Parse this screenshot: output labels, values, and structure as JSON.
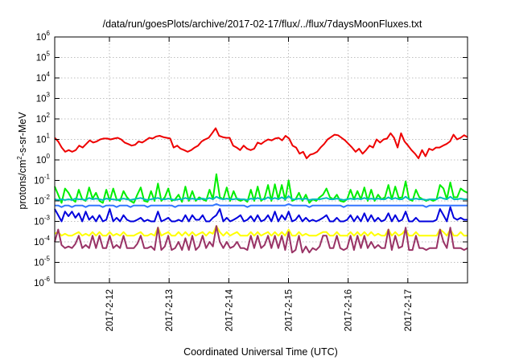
{
  "chart_data": {
    "type": "line",
    "title": "/data/run/goesPlots/archive/2017-02-17/flux/../flux/7daysMoonFluxes.txt",
    "xlabel": "Coordinated Universal Time (UTC)",
    "ylabel": {
      "prefix": "protons/cm",
      "sup": "2",
      "suffix": "-s-sr-MeV"
    },
    "y_scale": "log",
    "ylim": [
      1e-06,
      1000000.0
    ],
    "y_ticks": [
      {
        "base": "10",
        "exp": "-6",
        "value": -6
      },
      {
        "base": "10",
        "exp": "-5",
        "value": -5
      },
      {
        "base": "10",
        "exp": "-4",
        "value": -4
      },
      {
        "base": "10",
        "exp": "-3",
        "value": -3
      },
      {
        "base": "10",
        "exp": "-2",
        "value": -2
      },
      {
        "base": "10",
        "exp": "-1",
        "value": -1
      },
      {
        "base": "10",
        "exp": "0",
        "value": 0
      },
      {
        "base": "10",
        "exp": "1",
        "value": 1
      },
      {
        "base": "10",
        "exp": "2",
        "value": 2
      },
      {
        "base": "10",
        "exp": "3",
        "value": 3
      },
      {
        "base": "10",
        "exp": "4",
        "value": 4
      },
      {
        "base": "10",
        "exp": "5",
        "value": 5
      },
      {
        "base": "10",
        "exp": "6",
        "value": 6
      }
    ],
    "x_range_days": [
      2017.0211,
      2017.0
    ],
    "x_start": "2017-02-11 02:00",
    "x_end": "2017-02-18 00:00",
    "x_ticks": [
      "2017-2-12",
      "2017-2-13",
      "2017-2-14",
      "2017-2-15",
      "2017-2-16",
      "2017-2-17"
    ],
    "grid": true,
    "series": [
      {
        "color": "#ee0000",
        "values": [
          12,
          8,
          4,
          2.5,
          3,
          2.5,
          3,
          5,
          4,
          6,
          9,
          7,
          8,
          10,
          11,
          11,
          10,
          11,
          12,
          10,
          7,
          6,
          5,
          5.5,
          8,
          7,
          9,
          12,
          11,
          14,
          15,
          13,
          12,
          11,
          4,
          5,
          3.5,
          3,
          2.5,
          3,
          4,
          5,
          8,
          10,
          12,
          20,
          35,
          15,
          13,
          12,
          12,
          5,
          4,
          3,
          5,
          3.5,
          3,
          3.5,
          7,
          6,
          8,
          10,
          9,
          11,
          12,
          9,
          15,
          11,
          5,
          4,
          2,
          2.5,
          1.2,
          1.8,
          2,
          2.5,
          4,
          6,
          10,
          13,
          17,
          16,
          12,
          9,
          6,
          4,
          2.5,
          3.5,
          2,
          3,
          5,
          4,
          10,
          7,
          10,
          11,
          20,
          12,
          4,
          20,
          8,
          5,
          3,
          2,
          1.2,
          3,
          1.5,
          3.5,
          3,
          4,
          4,
          5,
          6,
          8,
          17,
          10,
          12,
          16,
          13
        ]
      },
      {
        "color": "#00ee00",
        "values": [
          0.05,
          0.02,
          0.008,
          0.04,
          0.025,
          0.012,
          0.009,
          0.035,
          0.012,
          0.01,
          0.045,
          0.013,
          0.025,
          0.01,
          0.008,
          0.035,
          0.01,
          0.04,
          0.012,
          0.01,
          0.03,
          0.015,
          0.01,
          0.008,
          0.02,
          0.045,
          0.01,
          0.009,
          0.03,
          0.01,
          0.07,
          0.01,
          0.015,
          0.04,
          0.01,
          0.012,
          0.02,
          0.009,
          0.05,
          0.01,
          0.03,
          0.01,
          0.015,
          0.012,
          0.01,
          0.035,
          0.012,
          0.2,
          0.015,
          0.012,
          0.045,
          0.01,
          0.03,
          0.012,
          0.01,
          0.012,
          0.009,
          0.035,
          0.01,
          0.05,
          0.01,
          0.014,
          0.06,
          0.01,
          0.065,
          0.012,
          0.06,
          0.011,
          0.1,
          0.01,
          0.012,
          0.025,
          0.01,
          0.02,
          0.008,
          0.012,
          0.01,
          0.015,
          0.02,
          0.04,
          0.015,
          0.012,
          0.02,
          0.01,
          0.009,
          0.012,
          0.035,
          0.012,
          0.03,
          0.012,
          0.045,
          0.01,
          0.035,
          0.01,
          0.02,
          0.012,
          0.015,
          0.06,
          0.012,
          0.05,
          0.014,
          0.015,
          0.09,
          0.012,
          0.01,
          0.035,
          0.015,
          0.012,
          0.01,
          0.012,
          0.01,
          0.012,
          0.06,
          0.04,
          0.012,
          0.08,
          0.015,
          0.015,
          0.04,
          0.03,
          0.025
        ]
      },
      {
        "color": "#00bbbb",
        "values": [
          0.012,
          0.011,
          0.012,
          0.011,
          0.012,
          0.011,
          0.013,
          0.012,
          0.012,
          0.011,
          0.014,
          0.012,
          0.013,
          0.012,
          0.011,
          0.013,
          0.012,
          0.012,
          0.011,
          0.012,
          0.013,
          0.012,
          0.011,
          0.012,
          0.013,
          0.014,
          0.012,
          0.011,
          0.012,
          0.013,
          0.014,
          0.012,
          0.012,
          0.013,
          0.012,
          0.011,
          0.012,
          0.012,
          0.014,
          0.012,
          0.013,
          0.012,
          0.012,
          0.013,
          0.012,
          0.014,
          0.012,
          0.016,
          0.013,
          0.012,
          0.013,
          0.012,
          0.012,
          0.013,
          0.012,
          0.012,
          0.011,
          0.013,
          0.012,
          0.014,
          0.012,
          0.012,
          0.015,
          0.012,
          0.014,
          0.012,
          0.015,
          0.012,
          0.017,
          0.012,
          0.012,
          0.013,
          0.012,
          0.013,
          0.011,
          0.012,
          0.012,
          0.012,
          0.013,
          0.014,
          0.012,
          0.012,
          0.013,
          0.012,
          0.011,
          0.012,
          0.013,
          0.012,
          0.013,
          0.012,
          0.014,
          0.012,
          0.013,
          0.012,
          0.013,
          0.012,
          0.012,
          0.015,
          0.012,
          0.014,
          0.012,
          0.012,
          0.016,
          0.012,
          0.012,
          0.013,
          0.012,
          0.012,
          0.011,
          0.012,
          0.012,
          0.012,
          0.015,
          0.013,
          0.012,
          0.016,
          0.012,
          0.012,
          0.013,
          0.012,
          0.012
        ]
      },
      {
        "color": "#0000dd",
        "values": [
          0.004,
          0.002,
          0.001,
          0.003,
          0.0018,
          0.003,
          0.0015,
          0.0025,
          0.001,
          0.003,
          0.0012,
          0.0018,
          0.001,
          0.002,
          0.001,
          0.0012,
          0.004,
          0.001,
          0.0015,
          0.001,
          0.002,
          0.0012,
          0.001,
          0.001,
          0.0012,
          0.0015,
          0.001,
          0.0012,
          0.001,
          0.001,
          0.003,
          0.001,
          0.0012,
          0.0015,
          0.001,
          0.001,
          0.0012,
          0.001,
          0.002,
          0.001,
          0.002,
          0.0012,
          0.0012,
          0.002,
          0.001,
          0.001,
          0.0015,
          0.002,
          0.004,
          0.001,
          0.0015,
          0.001,
          0.0012,
          0.0015,
          0.002,
          0.001,
          0.0012,
          0.0018,
          0.001,
          0.002,
          0.001,
          0.0012,
          0.002,
          0.001,
          0.003,
          0.001,
          0.002,
          0.0012,
          0.003,
          0.001,
          0.0012,
          0.002,
          0.001,
          0.0015,
          0.001,
          0.0012,
          0.001,
          0.0012,
          0.0015,
          0.002,
          0.001,
          0.001,
          0.0015,
          0.001,
          0.001,
          0.0012,
          0.002,
          0.001,
          0.0018,
          0.001,
          0.0025,
          0.001,
          0.002,
          0.001,
          0.0015,
          0.001,
          0.0012,
          0.0025,
          0.001,
          0.002,
          0.001,
          0.0012,
          0.003,
          0.001,
          0.001,
          0.0015,
          0.001,
          0.001,
          0.001,
          0.001,
          0.001,
          0.0012,
          0.004,
          0.002,
          0.001,
          0.005,
          0.0015,
          0.0012,
          0.0015,
          0.0012,
          0.0012
        ]
      },
      {
        "color": "#3377ff",
        "values": [
          0.006,
          0.006,
          0.005,
          0.006,
          0.006,
          0.005,
          0.006,
          0.006,
          0.006,
          0.005,
          0.006,
          0.006,
          0.006,
          0.006,
          0.005,
          0.006,
          0.006,
          0.006,
          0.005,
          0.006,
          0.006,
          0.006,
          0.005,
          0.006,
          0.006,
          0.006,
          0.006,
          0.005,
          0.006,
          0.006,
          0.006,
          0.006,
          0.006,
          0.006,
          0.006,
          0.005,
          0.006,
          0.006,
          0.006,
          0.006,
          0.006,
          0.006,
          0.006,
          0.006,
          0.006,
          0.006,
          0.006,
          0.007,
          0.006,
          0.006,
          0.006,
          0.006,
          0.006,
          0.006,
          0.006,
          0.006,
          0.005,
          0.006,
          0.006,
          0.006,
          0.006,
          0.006,
          0.006,
          0.006,
          0.006,
          0.006,
          0.006,
          0.006,
          0.007,
          0.006,
          0.006,
          0.006,
          0.006,
          0.006,
          0.005,
          0.006,
          0.006,
          0.006,
          0.006,
          0.006,
          0.006,
          0.006,
          0.006,
          0.006,
          0.005,
          0.006,
          0.006,
          0.006,
          0.006,
          0.006,
          0.006,
          0.006,
          0.006,
          0.006,
          0.006,
          0.006,
          0.006,
          0.006,
          0.006,
          0.006,
          0.006,
          0.006,
          0.006,
          0.006,
          0.006,
          0.006,
          0.006,
          0.006,
          0.005,
          0.006,
          0.006,
          0.006,
          0.006,
          0.006,
          0.006,
          0.006,
          0.006,
          0.006,
          0.006,
          0.006,
          0.006
        ]
      },
      {
        "color": "#ffff00",
        "values": [
          0.00025,
          0.0003,
          0.0002,
          0.00025,
          0.0002,
          0.0002,
          0.00025,
          0.0003,
          0.0002,
          0.00025,
          0.0002,
          0.0003,
          0.0002,
          0.0003,
          0.0002,
          0.0002,
          0.0003,
          0.0002,
          0.00025,
          0.0002,
          0.0003,
          0.0002,
          0.0002,
          0.0002,
          0.00025,
          0.0003,
          0.0002,
          0.0002,
          0.00025,
          0.0002,
          0.0005,
          0.0002,
          0.00025,
          0.0003,
          0.0002,
          0.0002,
          0.0003,
          0.0002,
          0.0003,
          0.0002,
          0.0003,
          0.0002,
          0.00025,
          0.0003,
          0.0002,
          0.0003,
          0.00025,
          0.0006,
          0.0003,
          0.0002,
          0.0003,
          0.0002,
          0.00025,
          0.0003,
          0.0002,
          0.0002,
          0.0002,
          0.0003,
          0.0002,
          0.0003,
          0.0002,
          0.00025,
          0.0003,
          0.0002,
          0.0003,
          0.0002,
          0.0003,
          0.0002,
          0.0004,
          0.0002,
          0.0002,
          0.0003,
          0.0002,
          0.00025,
          0.0002,
          0.0002,
          0.0002,
          0.00025,
          0.0003,
          0.0003,
          0.0002,
          0.0002,
          0.0003,
          0.0002,
          0.0002,
          0.0002,
          0.0003,
          0.0002,
          0.0003,
          0.0002,
          0.0003,
          0.0002,
          0.0003,
          0.0002,
          0.00025,
          0.0002,
          0.0002,
          0.0004,
          0.0002,
          0.0003,
          0.0002,
          0.00025,
          0.0004,
          0.0002,
          0.0002,
          0.0003,
          0.0002,
          0.0002,
          0.0002,
          0.0002,
          0.0002,
          0.0002,
          0.0004,
          0.0003,
          0.0002,
          0.0004,
          0.0002,
          0.0002,
          0.0003,
          0.0002,
          0.0002
        ]
      },
      {
        "color": "#993366",
        "values": [
          0.0001,
          0.0004,
          7e-05,
          5e-05,
          6e-05,
          5e-05,
          8e-05,
          0.0002,
          5e-05,
          7e-05,
          5e-05,
          0.0002,
          5e-05,
          0.0002,
          5e-05,
          5e-05,
          0.0002,
          5e-05,
          7e-05,
          5e-05,
          0.0002,
          5e-05,
          5e-05,
          5e-05,
          8e-05,
          0.0002,
          5e-05,
          5e-05,
          6e-05,
          4e-05,
          0.0005,
          4e-05,
          6e-05,
          0.0002,
          4e-05,
          5e-05,
          0.0001,
          4e-05,
          0.00015,
          4e-05,
          0.0002,
          4e-05,
          6e-05,
          0.0002,
          5e-05,
          0.0001,
          6e-05,
          0.0006,
          0.0001,
          5e-05,
          0.0001,
          5e-05,
          6e-05,
          0.0001,
          5e-05,
          5e-05,
          4e-05,
          0.0002,
          5e-05,
          0.0002,
          5e-05,
          7e-05,
          0.0002,
          5e-05,
          0.0002,
          5e-05,
          0.0002,
          4e-05,
          0.0003,
          3e-05,
          4e-05,
          0.0002,
          3e-05,
          6e-05,
          3e-05,
          5e-05,
          4e-05,
          6e-05,
          0.0002,
          0.0002,
          5e-05,
          5e-05,
          0.0002,
          5e-05,
          4e-05,
          5e-05,
          0.0002,
          4e-05,
          0.0002,
          5e-05,
          0.0002,
          5e-05,
          0.0001,
          5e-05,
          7e-05,
          5e-05,
          5e-05,
          0.0004,
          4e-05,
          0.0002,
          5e-05,
          6e-05,
          0.0005,
          4e-05,
          4e-05,
          0.0002,
          5e-05,
          5e-05,
          4e-05,
          5e-05,
          5e-05,
          5e-05,
          0.0004,
          0.0001,
          5e-05,
          0.0005,
          5e-05,
          5e-05,
          5e-05,
          4e-05,
          5e-05
        ]
      }
    ]
  }
}
